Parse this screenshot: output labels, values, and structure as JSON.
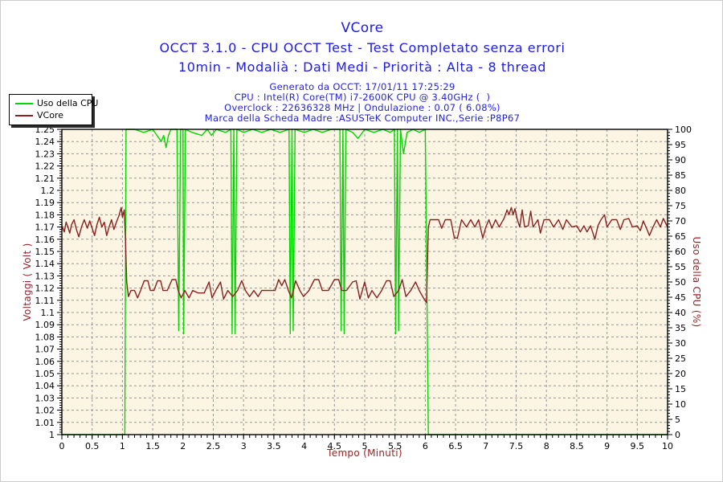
{
  "titles": {
    "main": "VCore",
    "sub1": "OCCT 3.1.0 - CPU OCCT Test - Test Completato senza errori",
    "sub2": "10min - Modalià : Dati Medi - Priorità : Alta - 8 thread"
  },
  "info": {
    "line1": "Generato da OCCT: 17/01/11 17:25:29",
    "line2": "CPU : Intel(R) Core(TM) i7-2600K CPU @ 3.40GHz (  )",
    "line3": "Overclock : 22636328 MHz | Ondulazione : 0.07 ( 6.08%)",
    "line4": "Marca della Scheda Madre :ASUSTeK Computer INC.,Serie :P8P67"
  },
  "legend": {
    "items": [
      {
        "label": "Uso della CPU",
        "color": "#00d800"
      },
      {
        "label": "VCore",
        "color": "#8b2020"
      }
    ]
  },
  "colors": {
    "title_blue": "#1b1bea",
    "info_blue": "#2323dd",
    "axis_title_red": "#992222",
    "cpu_green": "#00d800",
    "vcore_red": "#8b2020",
    "plot_bg": "#fcf5e3",
    "grid": "#979797",
    "frame": "#000000",
    "tick_label": "#000000"
  },
  "chart_data": {
    "type": "line",
    "title": "VCore",
    "xlabel": "Tempo (Minuti)",
    "ylabel_left": "Voltaggi ( Volt )",
    "ylabel_right": "Uso della CPU (%)",
    "xlim": [
      0,
      10
    ],
    "ylim_left": [
      1.0,
      1.25
    ],
    "ylim_right": [
      0,
      100
    ],
    "grid": true,
    "legend_position": "top-left",
    "x_tick_step": 0.5,
    "x_minor_step": 0.1,
    "x_tick_labels": [
      "0",
      "0.5",
      "1",
      "1.5",
      "2",
      "2.5",
      "3",
      "3.5",
      "4",
      "4.5",
      "5",
      "5.5",
      "6",
      "6.5",
      "7",
      "7.5",
      "8",
      "8.5",
      "9",
      "9.5",
      "10"
    ],
    "y_left_tick_step": 0.01,
    "y_left_tick_labels": [
      "1",
      "1.01",
      "1.02",
      "1.03",
      "1.04",
      "1.05",
      "1.06",
      "1.07",
      "1.08",
      "1.09",
      "1.1",
      "1.11",
      "1.12",
      "1.13",
      "1.14",
      "1.15",
      "1.16",
      "1.17",
      "1.18",
      "1.19",
      "1.2",
      "1.21",
      "1.22",
      "1.23",
      "1.24",
      "1.25"
    ],
    "y_right_tick_step": 5,
    "y_right_tick_labels": [
      "0",
      "5",
      "10",
      "15",
      "20",
      "25",
      "30",
      "35",
      "40",
      "45",
      "50",
      "55",
      "60",
      "65",
      "70",
      "75",
      "80",
      "85",
      "90",
      "95",
      "100"
    ],
    "series": [
      {
        "name": "Uso della CPU",
        "axis": "right",
        "color": "#00d800",
        "points": [
          [
            0,
            0
          ],
          [
            1.04,
            0
          ],
          [
            1.06,
            100
          ],
          [
            1.2,
            100
          ],
          [
            1.35,
            99
          ],
          [
            1.5,
            100
          ],
          [
            1.64,
            96
          ],
          [
            1.68,
            98
          ],
          [
            1.72,
            94
          ],
          [
            1.76,
            98
          ],
          [
            1.8,
            100
          ],
          [
            1.9,
            100
          ],
          [
            1.93,
            34
          ],
          [
            1.96,
            100
          ],
          [
            2.0,
            100
          ],
          [
            2.01,
            33
          ],
          [
            2.04,
            100
          ],
          [
            2.15,
            99
          ],
          [
            2.31,
            98
          ],
          [
            2.4,
            100
          ],
          [
            2.47,
            98
          ],
          [
            2.55,
            100
          ],
          [
            2.7,
            99
          ],
          [
            2.79,
            100
          ],
          [
            2.81,
            33
          ],
          [
            2.84,
            100
          ],
          [
            2.86,
            33
          ],
          [
            2.89,
            100
          ],
          [
            3.0,
            99
          ],
          [
            3.15,
            100
          ],
          [
            3.3,
            99
          ],
          [
            3.45,
            100
          ],
          [
            3.6,
            99
          ],
          [
            3.75,
            100
          ],
          [
            3.77,
            33
          ],
          [
            3.8,
            100
          ],
          [
            3.82,
            34
          ],
          [
            3.85,
            100
          ],
          [
            4.0,
            99
          ],
          [
            4.15,
            100
          ],
          [
            4.3,
            99
          ],
          [
            4.45,
            100
          ],
          [
            4.59,
            100
          ],
          [
            4.61,
            34
          ],
          [
            4.64,
            100
          ],
          [
            4.66,
            33
          ],
          [
            4.69,
            100
          ],
          [
            4.8,
            99
          ],
          [
            4.89,
            97
          ],
          [
            5.0,
            100
          ],
          [
            5.15,
            99
          ],
          [
            5.3,
            100
          ],
          [
            5.42,
            99
          ],
          [
            5.49,
            100
          ],
          [
            5.51,
            33
          ],
          [
            5.54,
            100
          ],
          [
            5.56,
            34
          ],
          [
            5.59,
            100
          ],
          [
            5.64,
            92
          ],
          [
            5.7,
            99
          ],
          [
            5.8,
            100
          ],
          [
            5.9,
            99
          ],
          [
            6.0,
            100
          ],
          [
            6.05,
            0
          ],
          [
            10,
            0
          ]
        ]
      },
      {
        "name": "VCore",
        "axis": "left",
        "color": "#8b2020",
        "points": [
          [
            0,
            1.171
          ],
          [
            0.04,
            1.166
          ],
          [
            0.07,
            1.174
          ],
          [
            0.1,
            1.17
          ],
          [
            0.13,
            1.165
          ],
          [
            0.16,
            1.172
          ],
          [
            0.2,
            1.176
          ],
          [
            0.24,
            1.168
          ],
          [
            0.28,
            1.162
          ],
          [
            0.33,
            1.171
          ],
          [
            0.37,
            1.176
          ],
          [
            0.42,
            1.169
          ],
          [
            0.46,
            1.175
          ],
          [
            0.5,
            1.169
          ],
          [
            0.54,
            1.163
          ],
          [
            0.58,
            1.172
          ],
          [
            0.62,
            1.178
          ],
          [
            0.66,
            1.17
          ],
          [
            0.7,
            1.174
          ],
          [
            0.74,
            1.163
          ],
          [
            0.78,
            1.17
          ],
          [
            0.82,
            1.176
          ],
          [
            0.86,
            1.168
          ],
          [
            0.9,
            1.174
          ],
          [
            0.94,
            1.179
          ],
          [
            0.98,
            1.186
          ],
          [
            1.0,
            1.178
          ],
          [
            1.03,
            1.184
          ],
          [
            1.05,
            1.16
          ],
          [
            1.07,
            1.125
          ],
          [
            1.1,
            1.113
          ],
          [
            1.14,
            1.118
          ],
          [
            1.2,
            1.118
          ],
          [
            1.25,
            1.112
          ],
          [
            1.3,
            1.118
          ],
          [
            1.36,
            1.126
          ],
          [
            1.42,
            1.126
          ],
          [
            1.46,
            1.118
          ],
          [
            1.52,
            1.118
          ],
          [
            1.58,
            1.126
          ],
          [
            1.63,
            1.126
          ],
          [
            1.67,
            1.118
          ],
          [
            1.74,
            1.118
          ],
          [
            1.82,
            1.127
          ],
          [
            1.88,
            1.127
          ],
          [
            1.92,
            1.118
          ],
          [
            1.97,
            1.112
          ],
          [
            2.03,
            1.118
          ],
          [
            2.1,
            1.112
          ],
          [
            2.16,
            1.118
          ],
          [
            2.25,
            1.116
          ],
          [
            2.35,
            1.116
          ],
          [
            2.43,
            1.125
          ],
          [
            2.48,
            1.112
          ],
          [
            2.54,
            1.118
          ],
          [
            2.62,
            1.125
          ],
          [
            2.67,
            1.111
          ],
          [
            2.74,
            1.118
          ],
          [
            2.82,
            1.113
          ],
          [
            2.9,
            1.118
          ],
          [
            2.97,
            1.126
          ],
          [
            3.03,
            1.118
          ],
          [
            3.1,
            1.113
          ],
          [
            3.17,
            1.118
          ],
          [
            3.24,
            1.113
          ],
          [
            3.3,
            1.118
          ],
          [
            3.42,
            1.118
          ],
          [
            3.52,
            1.118
          ],
          [
            3.58,
            1.127
          ],
          [
            3.63,
            1.122
          ],
          [
            3.68,
            1.127
          ],
          [
            3.74,
            1.118
          ],
          [
            3.79,
            1.112
          ],
          [
            3.86,
            1.126
          ],
          [
            3.93,
            1.118
          ],
          [
            3.99,
            1.113
          ],
          [
            4.08,
            1.118
          ],
          [
            4.17,
            1.127
          ],
          [
            4.24,
            1.127
          ],
          [
            4.3,
            1.118
          ],
          [
            4.4,
            1.118
          ],
          [
            4.5,
            1.127
          ],
          [
            4.57,
            1.127
          ],
          [
            4.62,
            1.118
          ],
          [
            4.7,
            1.118
          ],
          [
            4.8,
            1.125
          ],
          [
            4.86,
            1.126
          ],
          [
            4.92,
            1.111
          ],
          [
            5.0,
            1.125
          ],
          [
            5.06,
            1.112
          ],
          [
            5.12,
            1.118
          ],
          [
            5.2,
            1.112
          ],
          [
            5.28,
            1.118
          ],
          [
            5.36,
            1.126
          ],
          [
            5.42,
            1.126
          ],
          [
            5.48,
            1.113
          ],
          [
            5.56,
            1.118
          ],
          [
            5.62,
            1.127
          ],
          [
            5.68,
            1.113
          ],
          [
            5.76,
            1.118
          ],
          [
            5.84,
            1.125
          ],
          [
            5.9,
            1.118
          ],
          [
            5.97,
            1.112
          ],
          [
            6.02,
            1.108
          ],
          [
            6.05,
            1.17
          ],
          [
            6.08,
            1.176
          ],
          [
            6.15,
            1.176
          ],
          [
            6.22,
            1.176
          ],
          [
            6.27,
            1.169
          ],
          [
            6.33,
            1.176
          ],
          [
            6.42,
            1.176
          ],
          [
            6.48,
            1.161
          ],
          [
            6.53,
            1.161
          ],
          [
            6.6,
            1.176
          ],
          [
            6.68,
            1.17
          ],
          [
            6.75,
            1.176
          ],
          [
            6.82,
            1.17
          ],
          [
            6.88,
            1.176
          ],
          [
            6.95,
            1.161
          ],
          [
            7.0,
            1.17
          ],
          [
            7.05,
            1.176
          ],
          [
            7.1,
            1.169
          ],
          [
            7.16,
            1.176
          ],
          [
            7.22,
            1.17
          ],
          [
            7.3,
            1.177
          ],
          [
            7.35,
            1.184
          ],
          [
            7.38,
            1.18
          ],
          [
            7.42,
            1.186
          ],
          [
            7.45,
            1.18
          ],
          [
            7.48,
            1.185
          ],
          [
            7.52,
            1.176
          ],
          [
            7.56,
            1.17
          ],
          [
            7.6,
            1.184
          ],
          [
            7.64,
            1.17
          ],
          [
            7.7,
            1.171
          ],
          [
            7.74,
            1.183
          ],
          [
            7.78,
            1.17
          ],
          [
            7.86,
            1.176
          ],
          [
            7.9,
            1.165
          ],
          [
            7.96,
            1.176
          ],
          [
            8.05,
            1.176
          ],
          [
            8.12,
            1.17
          ],
          [
            8.2,
            1.176
          ],
          [
            8.27,
            1.168
          ],
          [
            8.33,
            1.176
          ],
          [
            8.42,
            1.17
          ],
          [
            8.5,
            1.171
          ],
          [
            8.56,
            1.166
          ],
          [
            8.62,
            1.171
          ],
          [
            8.67,
            1.166
          ],
          [
            8.73,
            1.171
          ],
          [
            8.8,
            1.16
          ],
          [
            8.85,
            1.171
          ],
          [
            8.9,
            1.176
          ],
          [
            8.96,
            1.18
          ],
          [
            9.0,
            1.17
          ],
          [
            9.08,
            1.176
          ],
          [
            9.16,
            1.176
          ],
          [
            9.22,
            1.168
          ],
          [
            9.28,
            1.176
          ],
          [
            9.36,
            1.177
          ],
          [
            9.42,
            1.17
          ],
          [
            9.5,
            1.171
          ],
          [
            9.55,
            1.167
          ],
          [
            9.6,
            1.175
          ],
          [
            9.66,
            1.168
          ],
          [
            9.7,
            1.163
          ],
          [
            9.76,
            1.17
          ],
          [
            9.82,
            1.176
          ],
          [
            9.88,
            1.17
          ],
          [
            9.93,
            1.177
          ],
          [
            10,
            1.17
          ]
        ]
      }
    ]
  }
}
